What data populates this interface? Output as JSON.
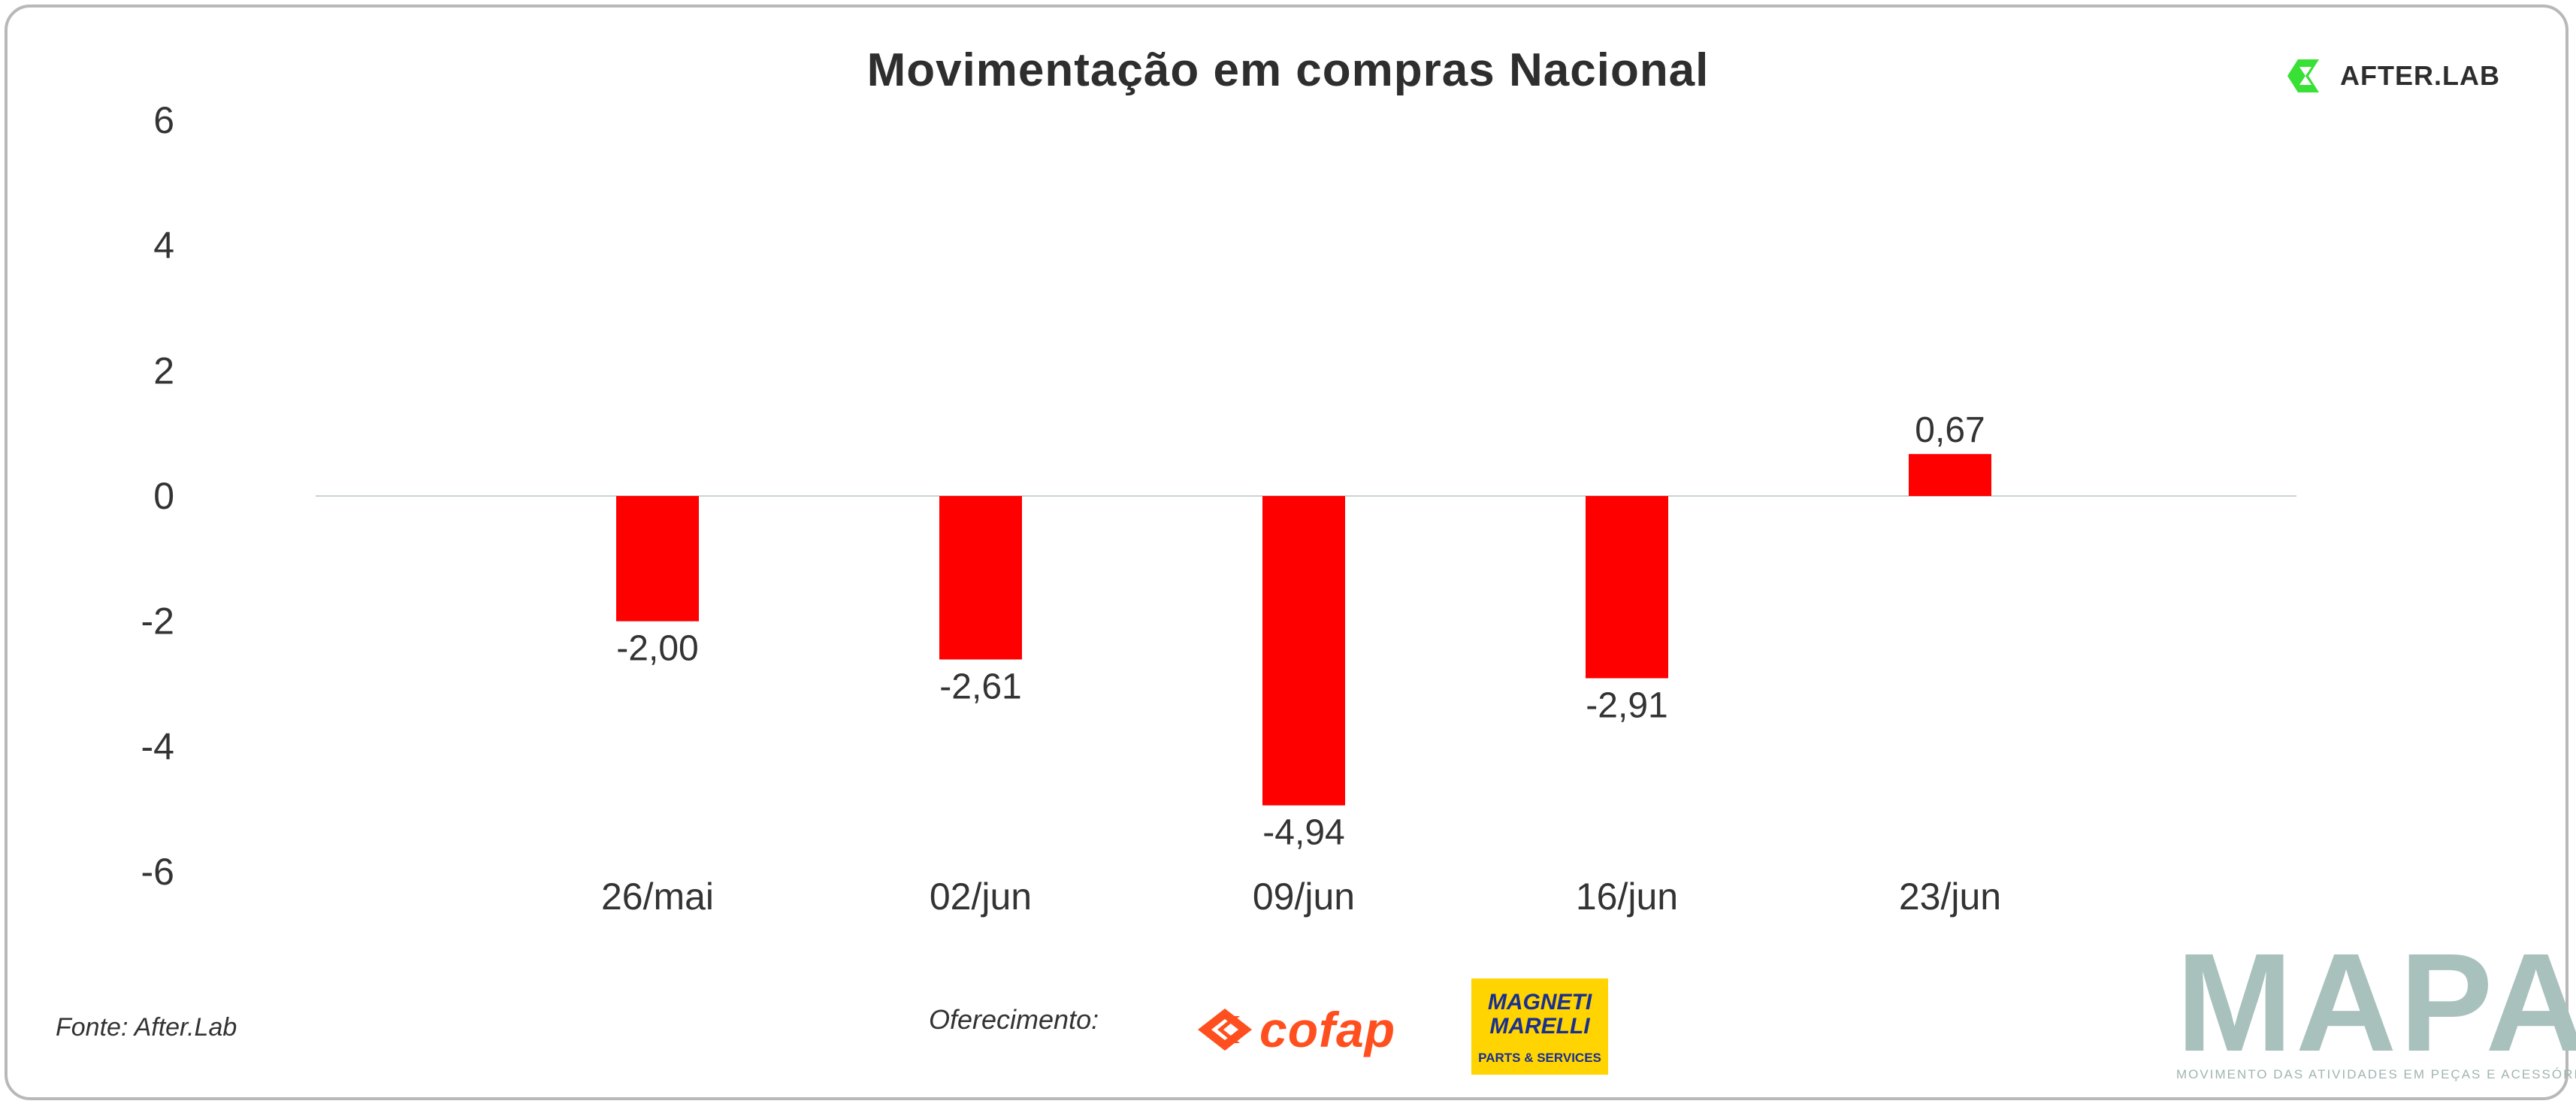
{
  "brand_logo": {
    "name": "AFTER.LAB",
    "icon": "afterlab-logo-icon",
    "color": "#39e035"
  },
  "chart_data": {
    "type": "bar",
    "title": "Movimentação em compras Nacional",
    "xlabel": "",
    "ylabel": "",
    "categories": [
      "26/mai",
      "02/jun",
      "09/jun",
      "16/jun",
      "23/jun"
    ],
    "values": [
      -2.0,
      -2.61,
      -4.94,
      -2.91,
      0.67
    ],
    "value_labels": [
      "-2,00",
      "-2,61",
      "-4,94",
      "-2,91",
      "0,67"
    ],
    "yticks": [
      6,
      4,
      2,
      0,
      -2,
      -4,
      -6
    ],
    "ytick_labels": [
      "6",
      "4",
      "2",
      "0",
      "-2",
      "-4",
      "-6"
    ],
    "ylim": [
      -6,
      6
    ],
    "grid": false,
    "legend": false,
    "bar_color": "#ff0000"
  },
  "footer": {
    "source": "Fonte: After.Lab",
    "sponsor_label": "Oferecimento:"
  },
  "sponsors": {
    "cofap": {
      "name": "cofap",
      "color": "#ff4f1f"
    },
    "magneti": {
      "name_line1": "MAGNETI",
      "name_line2": "MARELLI",
      "subtitle": "PARTS & SERVICES",
      "bg": "#ffd400",
      "text_color": "#1a2f8f"
    }
  },
  "mapa_logo": {
    "name": "MAPA",
    "tagline": "MOVIMENTO DAS ATIVIDADES EM PEÇAS E ACESSÓRIOS",
    "color": "#a9c1bd"
  }
}
